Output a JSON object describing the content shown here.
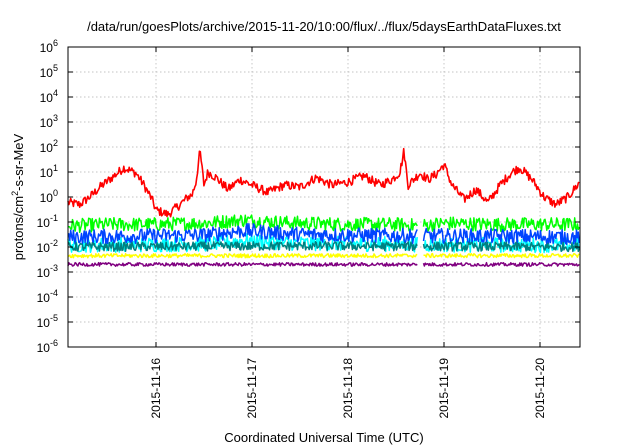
{
  "chart_data": {
    "type": "line",
    "title": "/data/run/goesPlots/archive/2015-11-20/10:00/flux/../flux/5daysEarthDataFluxes.txt",
    "xlabel": "Coordinated Universal Time (UTC)",
    "ylabel": {
      "base": "protons/cm",
      "sup": "2",
      "rest": "-s-sr-MeV"
    },
    "yscale": "log",
    "ylim": [
      1e-06,
      1000000.0
    ],
    "xlim": [
      "2015-11-15 02:00",
      "2015-11-20 10:00"
    ],
    "grid": true,
    "legend": "none",
    "y_ticks": [
      {
        "value": 1e-06,
        "base": "10",
        "exp": "-6"
      },
      {
        "value": 1e-05,
        "base": "10",
        "exp": "-5"
      },
      {
        "value": 0.0001,
        "base": "10",
        "exp": "-4"
      },
      {
        "value": 0.001,
        "base": "10",
        "exp": "-3"
      },
      {
        "value": 0.01,
        "base": "10",
        "exp": "-2"
      },
      {
        "value": 0.1,
        "base": "10",
        "exp": "-1"
      },
      {
        "value": 1.0,
        "base": "10",
        "exp": "0"
      },
      {
        "value": 10.0,
        "base": "10",
        "exp": "1"
      },
      {
        "value": 100.0,
        "base": "10",
        "exp": "2"
      },
      {
        "value": 1000.0,
        "base": "10",
        "exp": "3"
      },
      {
        "value": 10000.0,
        "base": "10",
        "exp": "4"
      },
      {
        "value": 100000.0,
        "base": "10",
        "exp": "5"
      },
      {
        "value": 1000000.0,
        "base": "10",
        "exp": "6"
      }
    ],
    "x_ticks": [
      {
        "value": "2015-11-16 00:00",
        "label": "2015-11-16"
      },
      {
        "value": "2015-11-17 00:00",
        "label": "2015-11-17"
      },
      {
        "value": "2015-11-18 00:00",
        "label": "2015-11-18"
      },
      {
        "value": "2015-11-19 00:00",
        "label": "2015-11-19"
      },
      {
        "value": "2015-11-20 00:00",
        "label": "2015-11-20"
      }
    ],
    "series": [
      {
        "color": "#ff0000",
        "noise": 0.18,
        "x": [
          "2015-11-15 02:00",
          "2015-11-15 05:00",
          "2015-11-15 08:00",
          "2015-11-15 10:00",
          "2015-11-15 13:00",
          "2015-11-15 16:00",
          "2015-11-15 19:00",
          "2015-11-15 21:00",
          "2015-11-15 23:00",
          "2015-11-16 00:00",
          "2015-11-16 03:00",
          "2015-11-16 06:00",
          "2015-11-16 08:00",
          "2015-11-16 09:00",
          "2015-11-16 10:00",
          "2015-11-16 11:00",
          "2015-11-16 12:00",
          "2015-11-16 13:00",
          "2015-11-16 15:00",
          "2015-11-16 18:00",
          "2015-11-16 21:00",
          "2015-11-17 00:00",
          "2015-11-17 04:00",
          "2015-11-17 08:00",
          "2015-11-17 12:00",
          "2015-11-17 16:00",
          "2015-11-17 20:00",
          "2015-11-18 00:00",
          "2015-11-18 04:00",
          "2015-11-18 08:00",
          "2015-11-18 11:00",
          "2015-11-18 13:00",
          "2015-11-18 14:00",
          "2015-11-18 15:00",
          "2015-11-18 18:00",
          "2015-11-18 20:00",
          "2015-11-18 22:00",
          "2015-11-19 00:00",
          "2015-11-19 02:00",
          "2015-11-19 05:00",
          "2015-11-19 08:00",
          "2015-11-19 11:00",
          "2015-11-19 14:00",
          "2015-11-19 17:00",
          "2015-11-19 19:00",
          "2015-11-19 22:00",
          "2015-11-20 01:00",
          "2015-11-20 04:00",
          "2015-11-20 07:00",
          "2015-11-20 10:00"
        ],
        "values": [
          0.6,
          0.5,
          1.2,
          2.5,
          6,
          15,
          9,
          3,
          0.8,
          0.3,
          0.2,
          0.5,
          1,
          1.2,
          4,
          70,
          3,
          10,
          6,
          2,
          5,
          3,
          1.5,
          3,
          2.5,
          6,
          3,
          4,
          7,
          3,
          5,
          10,
          70,
          3,
          9,
          5,
          8,
          20,
          3,
          0.8,
          2,
          0.6,
          3,
          10,
          15,
          5,
          1,
          0.5,
          1,
          4
        ]
      },
      {
        "color": "#00ff00",
        "noise": 0.28,
        "x": [
          "2015-11-15 02:00",
          "2015-11-15 12:00",
          "2015-11-16 00:00",
          "2015-11-16 12:00",
          "2015-11-16 22:00",
          "2015-11-17 06:00",
          "2015-11-17 12:00",
          "2015-11-18 00:00",
          "2015-11-18 12:00",
          "2015-11-18 18:00",
          "2015-11-19 00:00",
          "2015-11-19 12:00",
          "2015-11-20 00:00",
          "2015-11-20 10:00"
        ],
        "values": [
          0.07,
          0.08,
          0.08,
          0.09,
          0.12,
          0.1,
          0.09,
          0.08,
          0.08,
          0.07,
          0.09,
          0.08,
          0.08,
          0.08
        ]
      },
      {
        "color": "#00ffff",
        "noise": 0.3,
        "x": [
          "2015-11-15 02:00",
          "2015-11-16 12:00",
          "2015-11-16 22:00",
          "2015-11-17 12:00",
          "2015-11-18 12:00",
          "2015-11-19 12:00",
          "2015-11-20 10:00"
        ],
        "values": [
          0.012,
          0.013,
          0.018,
          0.014,
          0.013,
          0.012,
          0.012
        ]
      },
      {
        "color": "#0044ff",
        "noise": 0.3,
        "x": [
          "2015-11-15 02:00",
          "2015-11-16 12:00",
          "2015-11-16 22:00",
          "2015-11-17 12:00",
          "2015-11-18 12:00",
          "2015-11-19 12:00",
          "2015-11-20 10:00"
        ],
        "values": [
          0.025,
          0.03,
          0.045,
          0.032,
          0.028,
          0.027,
          0.025
        ]
      },
      {
        "color": "#008080",
        "noise": 0.18,
        "x": [
          "2015-11-15 02:00",
          "2015-11-17 12:00",
          "2015-11-20 10:00"
        ],
        "values": [
          0.01,
          0.011,
          0.01
        ]
      },
      {
        "color": "#ffff00",
        "noise": 0.08,
        "x": [
          "2015-11-15 02:00",
          "2015-11-17 12:00",
          "2015-11-20 10:00"
        ],
        "values": [
          0.0045,
          0.0045,
          0.0045
        ]
      },
      {
        "color": "#800080",
        "noise": 0.07,
        "x": [
          "2015-11-15 02:00",
          "2015-11-17 12:00",
          "2015-11-20 10:00"
        ],
        "values": [
          0.002,
          0.002,
          0.002
        ]
      }
    ]
  }
}
